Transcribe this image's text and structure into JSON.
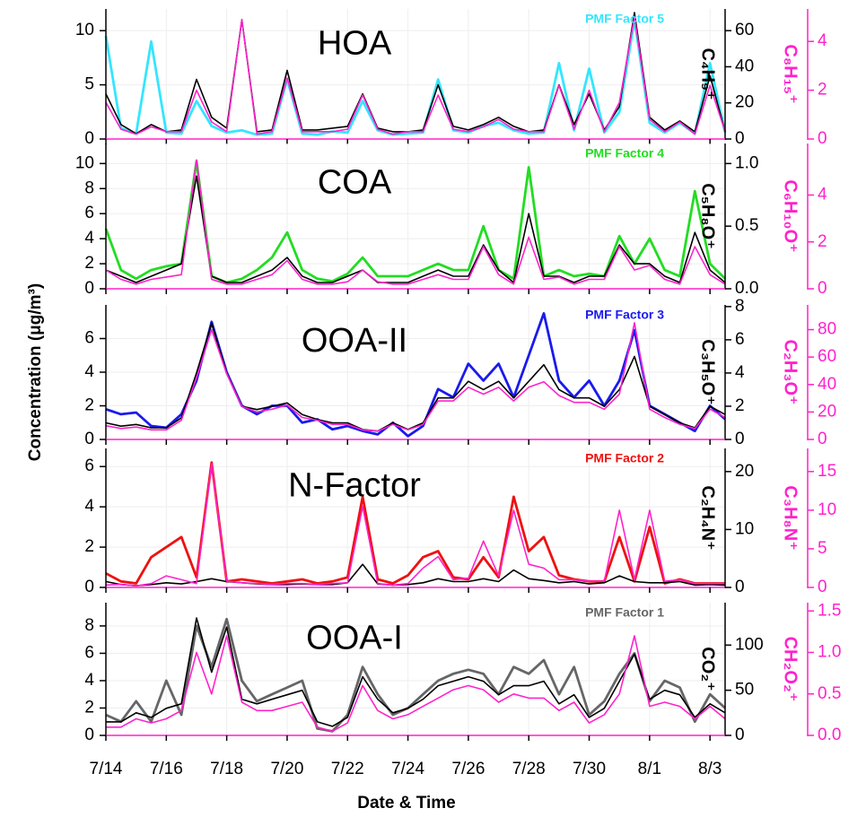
{
  "chart_data": [
    {
      "type": "line",
      "title": "HOA",
      "grid": true,
      "x": [
        0,
        0.5,
        1,
        1.5,
        2,
        2.5,
        3,
        3.5,
        4,
        4.5,
        5,
        5.5,
        6,
        6.5,
        7,
        7.5,
        8,
        8.5,
        9,
        9.5,
        10,
        10.5,
        11,
        11.5,
        12,
        12.5,
        13,
        13.5,
        14,
        14.5,
        15,
        15.5,
        16,
        16.5,
        17,
        17.5,
        18,
        18.5,
        19,
        19.5,
        20,
        20.5
      ],
      "xlim": [
        0,
        20.5
      ],
      "ylim": [
        0,
        12
      ],
      "yticks": [
        0,
        5,
        10
      ],
      "y2lim": [
        0,
        72
      ],
      "y2ticks": [
        0,
        20,
        40,
        60
      ],
      "y3lim": [
        0,
        5.33
      ],
      "y3ticks": [
        0,
        2,
        4
      ],
      "series": [
        {
          "name": "PMF Factor 5",
          "color": "#33e6ff",
          "values": [
            9.5,
            1.0,
            0.5,
            9.0,
            0.6,
            0.5,
            3.5,
            1.2,
            0.6,
            0.8,
            0.4,
            0.5,
            5.5,
            0.5,
            0.4,
            0.7,
            0.6,
            3.5,
            0.8,
            0.4,
            0.5,
            0.6,
            5.5,
            0.8,
            0.6,
            1.2,
            1.5,
            0.8,
            0.5,
            0.6,
            7.0,
            0.8,
            6.5,
            0.6,
            2.5,
            11.0,
            1.5,
            0.6,
            1.5,
            0.5,
            7.0,
            0.6
          ]
        },
        {
          "name": "C₄H₉⁺",
          "color": "#000000",
          "axis": "y2",
          "values": [
            25,
            8,
            3,
            8,
            4,
            5,
            33,
            12,
            6,
            66,
            4,
            5,
            38,
            5,
            5,
            6,
            7,
            25,
            6,
            4,
            4,
            5,
            30,
            7,
            5,
            8,
            12,
            7,
            4,
            5,
            30,
            8,
            25,
            5,
            18,
            70,
            12,
            5,
            10,
            4,
            35,
            4
          ]
        },
        {
          "name": "C₈H₁₅⁺",
          "color": "#ff22cc",
          "axis": "y3",
          "values": [
            1.5,
            0.4,
            0.2,
            0.5,
            0.3,
            0.3,
            2.0,
            0.7,
            0.3,
            4.9,
            0.2,
            0.3,
            2.5,
            0.3,
            0.3,
            0.3,
            0.4,
            1.8,
            0.4,
            0.2,
            0.3,
            0.3,
            1.8,
            0.4,
            0.3,
            0.5,
            0.8,
            0.4,
            0.3,
            0.3,
            2.2,
            0.4,
            2.0,
            0.3,
            1.5,
            5.0,
            0.8,
            0.3,
            0.7,
            0.2,
            2.2,
            0.3
          ]
        }
      ]
    },
    {
      "type": "line",
      "title": "COA",
      "grid": true,
      "x": [
        0,
        0.5,
        1,
        1.5,
        2,
        2.5,
        3,
        3.5,
        4,
        4.5,
        5,
        5.5,
        6,
        6.5,
        7,
        7.5,
        8,
        8.5,
        9,
        9.5,
        10,
        10.5,
        11,
        11.5,
        12,
        12.5,
        13,
        13.5,
        14,
        14.5,
        15,
        15.5,
        16,
        16.5,
        17,
        17.5,
        18,
        18.5,
        19,
        19.5,
        20,
        20.5
      ],
      "xlim": [
        0,
        20.5
      ],
      "ylim": [
        0,
        11.6
      ],
      "yticks": [
        0,
        2,
        4,
        6,
        8,
        10
      ],
      "y2lim": [
        0,
        1.16
      ],
      "y2ticks": [
        {
          "value": 0,
          "label": "0.0"
        },
        0.5,
        {
          "value": 1,
          "label": "1.0"
        }
      ],
      "y3lim": [
        0,
        6.2
      ],
      "y3ticks": [
        0,
        2,
        4
      ],
      "series": [
        {
          "name": "PMF Factor 4",
          "color": "#22dd22",
          "values": [
            4.8,
            1.5,
            0.8,
            1.5,
            1.8,
            2.0,
            10.2,
            1.0,
            0.5,
            0.8,
            1.5,
            2.5,
            4.5,
            1.5,
            0.8,
            0.6,
            1.2,
            2.5,
            1.0,
            1.0,
            1.0,
            1.5,
            2.0,
            1.5,
            1.5,
            5.0,
            1.5,
            0.8,
            9.7,
            1.0,
            1.5,
            1.0,
            1.2,
            1.0,
            4.2,
            2.0,
            4.0,
            1.5,
            1.0,
            7.8,
            2.0,
            0.8
          ]
        },
        {
          "name": "C₅H₈O⁺",
          "color": "#000000",
          "axis": "y2",
          "values": [
            0.15,
            0.1,
            0.05,
            0.1,
            0.15,
            0.2,
            0.9,
            0.1,
            0.05,
            0.05,
            0.1,
            0.15,
            0.25,
            0.1,
            0.05,
            0.05,
            0.1,
            0.15,
            0.05,
            0.05,
            0.05,
            0.1,
            0.15,
            0.1,
            0.1,
            0.35,
            0.15,
            0.05,
            0.6,
            0.1,
            0.1,
            0.05,
            0.1,
            0.1,
            0.35,
            0.2,
            0.2,
            0.1,
            0.05,
            0.45,
            0.15,
            0.05
          ]
        },
        {
          "name": "C₆H₁₀O⁺",
          "color": "#ff22cc",
          "axis": "y3",
          "values": [
            0.8,
            0.4,
            0.2,
            0.4,
            0.5,
            0.6,
            5.5,
            0.4,
            0.2,
            0.2,
            0.4,
            0.6,
            1.2,
            0.4,
            0.2,
            0.2,
            0.3,
            0.8,
            0.3,
            0.2,
            0.2,
            0.4,
            0.6,
            0.4,
            0.4,
            1.8,
            0.6,
            0.2,
            2.2,
            0.4,
            0.5,
            0.2,
            0.4,
            0.4,
            1.8,
            0.8,
            1.0,
            0.4,
            0.2,
            1.8,
            0.6,
            0.2
          ]
        }
      ]
    },
    {
      "type": "line",
      "title": "OOA-II",
      "grid": true,
      "ylabel": "Concentration (μg/m³)",
      "x": [
        0,
        0.5,
        1,
        1.5,
        2,
        2.5,
        3,
        3.5,
        4,
        4.5,
        5,
        5.5,
        6,
        6.5,
        7,
        7.5,
        8,
        8.5,
        9,
        9.5,
        10,
        10.5,
        11,
        11.5,
        12,
        12.5,
        13,
        13.5,
        14,
        14.5,
        15,
        15.5,
        16,
        16.5,
        17,
        17.5,
        18,
        18.5,
        19,
        19.5,
        20,
        20.5
      ],
      "xlim": [
        0,
        20.5
      ],
      "ylim": [
        0,
        8.0
      ],
      "yticks": [
        0,
        2,
        4,
        6
      ],
      "y2lim": [
        0,
        8.1
      ],
      "y2ticks": [
        0,
        2,
        4,
        6,
        8
      ],
      "y3lim": [
        0,
        98
      ],
      "y3ticks": [
        0,
        20,
        40,
        60,
        80
      ],
      "series": [
        {
          "name": "PMF Factor 3",
          "color": "#1a1aee",
          "values": [
            1.8,
            1.5,
            1.6,
            0.8,
            0.7,
            1.5,
            3.5,
            7.0,
            4.0,
            2.0,
            1.5,
            2.0,
            2.0,
            1.0,
            1.2,
            0.6,
            0.8,
            0.5,
            0.3,
            1.0,
            0.2,
            0.8,
            3.0,
            2.5,
            4.5,
            3.5,
            4.5,
            2.5,
            5.0,
            7.5,
            3.5,
            2.5,
            3.5,
            2.0,
            3.5,
            6.5,
            2.0,
            1.5,
            1.0,
            0.5,
            2.0,
            1.2
          ]
        },
        {
          "name": "C₃H₅O⁺",
          "color": "#000000",
          "axis": "y2",
          "values": [
            1.0,
            0.8,
            0.9,
            0.7,
            0.7,
            1.3,
            4.0,
            7.0,
            4.0,
            2.0,
            1.8,
            2.0,
            2.2,
            1.5,
            1.2,
            1.0,
            1.0,
            0.6,
            0.5,
            1.0,
            0.6,
            1.0,
            2.5,
            2.5,
            3.5,
            3.0,
            3.5,
            2.5,
            3.5,
            4.5,
            3.0,
            2.5,
            2.5,
            2.0,
            3.0,
            5.0,
            2.0,
            1.5,
            1.0,
            0.7,
            2.0,
            1.5
          ]
        },
        {
          "name": "C₂H₃O⁺",
          "color": "#ff22cc",
          "axis": "y3",
          "values": [
            10,
            8,
            9,
            7,
            7,
            14,
            45,
            80,
            48,
            24,
            20,
            22,
            25,
            16,
            14,
            11,
            11,
            7,
            6,
            11,
            7,
            11,
            28,
            28,
            38,
            33,
            38,
            28,
            38,
            42,
            32,
            27,
            27,
            22,
            33,
            85,
            22,
            16,
            11,
            8,
            22,
            16
          ]
        }
      ]
    },
    {
      "type": "line",
      "title": "N-Factor",
      "grid": true,
      "x": [
        0,
        0.5,
        1,
        1.5,
        2,
        2.5,
        3,
        3.5,
        4,
        4.5,
        5,
        5.5,
        6,
        6.5,
        7,
        7.5,
        8,
        8.5,
        9,
        9.5,
        10,
        10.5,
        11,
        11.5,
        12,
        12.5,
        13,
        13.5,
        14,
        14.5,
        15,
        15.5,
        16,
        16.5,
        17,
        17.5,
        18,
        18.5,
        19,
        19.5,
        20,
        20.5
      ],
      "xlim": [
        0,
        20.5
      ],
      "ylim": [
        0,
        6.9
      ],
      "yticks": [
        0,
        2,
        4,
        6
      ],
      "y2lim": [
        0,
        24
      ],
      "y2ticks": [
        0,
        10,
        20
      ],
      "y3lim": [
        0,
        18
      ],
      "y3ticks": [
        0,
        5,
        10,
        15
      ],
      "series": [
        {
          "name": "PMF Factor 2",
          "color": "#ee1111",
          "values": [
            0.7,
            0.3,
            0.2,
            1.5,
            2.0,
            2.5,
            0.5,
            6.2,
            0.3,
            0.4,
            0.3,
            0.2,
            0.3,
            0.4,
            0.2,
            0.3,
            0.5,
            4.5,
            0.4,
            0.2,
            0.6,
            1.5,
            1.8,
            0.5,
            0.4,
            1.5,
            0.5,
            4.5,
            1.8,
            2.5,
            0.6,
            0.4,
            0.3,
            0.3,
            2.5,
            0.3,
            3.0,
            0.2,
            0.4,
            0.2,
            0.2,
            0.2
          ]
        },
        {
          "name": "C₂H₄N⁺",
          "color": "#000000",
          "axis": "y2",
          "values": [
            1.0,
            0.5,
            0.3,
            0.5,
            0.8,
            0.6,
            1.0,
            1.5,
            1.0,
            0.8,
            0.6,
            0.5,
            0.5,
            0.6,
            0.5,
            0.5,
            0.8,
            4.0,
            0.6,
            0.4,
            0.5,
            0.8,
            1.5,
            1.0,
            1.0,
            1.5,
            1.0,
            3.0,
            1.5,
            1.2,
            0.8,
            1.0,
            0.6,
            0.8,
            2.0,
            1.0,
            0.8,
            0.8,
            1.0,
            0.4,
            0.5,
            0.4
          ]
        },
        {
          "name": "C₃H₈N⁺",
          "color": "#ff22cc",
          "axis": "y3",
          "values": [
            0.3,
            0.4,
            0.2,
            0.5,
            1.5,
            1.0,
            0.5,
            16.0,
            0.8,
            0.6,
            0.5,
            0.4,
            0.5,
            0.5,
            0.4,
            0.5,
            0.6,
            10.5,
            0.5,
            0.3,
            0.5,
            2.5,
            4.0,
            1.0,
            1.2,
            6.0,
            1.5,
            10.0,
            3.0,
            2.5,
            1.0,
            1.0,
            0.8,
            0.8,
            10.0,
            1.0,
            10.0,
            0.8,
            1.0,
            0.5,
            0.5,
            0.5
          ]
        }
      ]
    },
    {
      "type": "line",
      "title": "OOA-I",
      "grid": true,
      "xlabel": "Date & Time",
      "x": [
        0,
        0.5,
        1,
        1.5,
        2,
        2.5,
        3,
        3.5,
        4,
        4.5,
        5,
        5.5,
        6,
        6.5,
        7,
        7.5,
        8,
        8.5,
        9,
        9.5,
        10,
        10.5,
        11,
        11.5,
        12,
        12.5,
        13,
        13.5,
        14,
        14.5,
        15,
        15.5,
        16,
        16.5,
        17,
        17.5,
        18,
        18.5,
        19,
        19.5,
        20,
        20.5
      ],
      "xlim": [
        0,
        20.5
      ],
      "xticks": [
        {
          "value": 0,
          "label": "7/14"
        },
        {
          "value": 2,
          "label": "7/16"
        },
        {
          "value": 4,
          "label": "7/18"
        },
        {
          "value": 6,
          "label": "7/20"
        },
        {
          "value": 8,
          "label": "7/22"
        },
        {
          "value": 10,
          "label": "7/24"
        },
        {
          "value": 12,
          "label": "7/26"
        },
        {
          "value": 14,
          "label": "7/28"
        },
        {
          "value": 16,
          "label": "7/30"
        },
        {
          "value": 18,
          "label": "8/1"
        },
        {
          "value": 20,
          "label": "8/3"
        }
      ],
      "ylim": [
        0,
        9.7
      ],
      "yticks": [
        0,
        2,
        4,
        6,
        8
      ],
      "y2lim": [
        0,
        147
      ],
      "y2ticks": [
        0,
        50,
        100
      ],
      "y3lim": [
        0,
        1.6
      ],
      "y3ticks": [
        {
          "value": 0,
          "label": "0.0"
        },
        0.5,
        {
          "value": 1,
          "label": "1.0"
        },
        1.5
      ],
      "series": [
        {
          "name": "PMF Factor 1",
          "color": "#666666",
          "values": [
            1.5,
            1.0,
            2.5,
            1.0,
            4.0,
            1.5,
            8.0,
            5.0,
            8.5,
            4.0,
            2.5,
            3.0,
            3.5,
            4.0,
            0.5,
            0.3,
            1.5,
            5.0,
            3.0,
            1.5,
            2.0,
            3.0,
            4.0,
            4.5,
            4.8,
            4.5,
            3.0,
            5.0,
            4.5,
            5.5,
            3.0,
            5.0,
            1.5,
            2.5,
            4.5,
            6.0,
            2.5,
            4.0,
            3.5,
            1.0,
            3.0,
            2.0
          ]
        },
        {
          "name": "CO₂⁺",
          "color": "#000000",
          "axis": "y2",
          "values": [
            15,
            15,
            25,
            20,
            30,
            35,
            130,
            70,
            120,
            40,
            35,
            40,
            45,
            50,
            15,
            10,
            20,
            65,
            40,
            25,
            30,
            40,
            55,
            60,
            65,
            60,
            45,
            55,
            55,
            60,
            35,
            45,
            20,
            30,
            60,
            90,
            40,
            50,
            45,
            20,
            35,
            25
          ]
        },
        {
          "name": "CH₂O₂⁺",
          "color": "#ff22cc",
          "axis": "y3",
          "values": [
            0.1,
            0.1,
            0.2,
            0.15,
            0.2,
            0.3,
            1.0,
            0.5,
            1.2,
            0.4,
            0.3,
            0.3,
            0.35,
            0.4,
            0.1,
            0.05,
            0.15,
            0.6,
            0.3,
            0.2,
            0.25,
            0.35,
            0.45,
            0.55,
            0.6,
            0.55,
            0.4,
            0.5,
            0.45,
            0.45,
            0.3,
            0.4,
            0.15,
            0.25,
            0.5,
            1.2,
            0.35,
            0.4,
            0.35,
            0.2,
            0.35,
            0.2
          ]
        }
      ]
    }
  ]
}
